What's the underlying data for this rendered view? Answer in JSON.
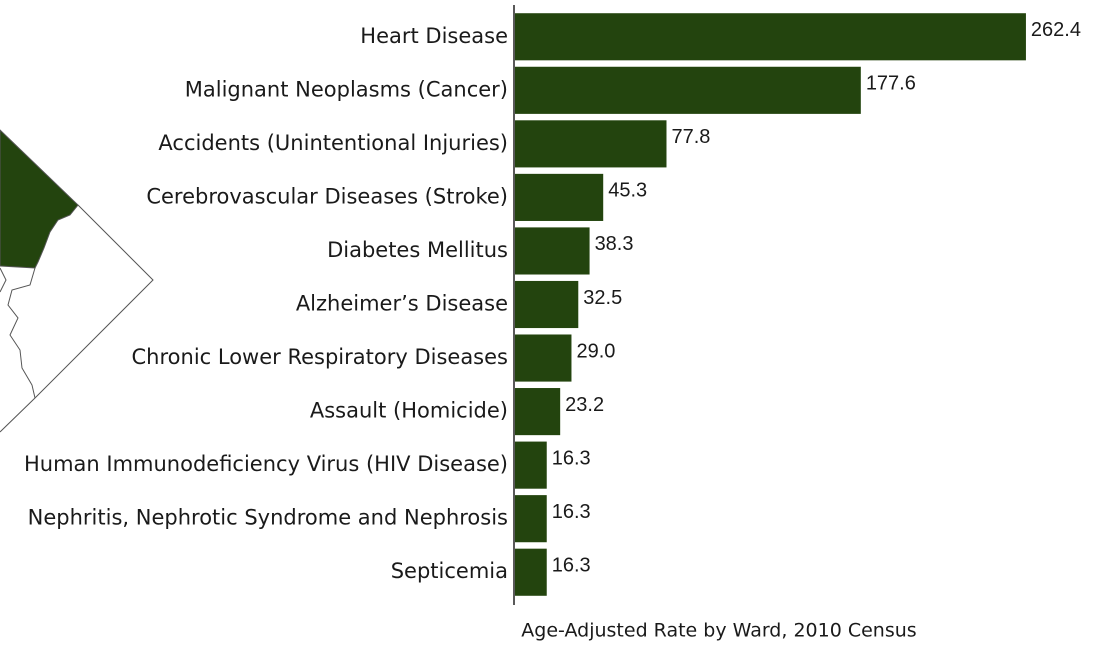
{
  "chart_data": {
    "type": "bar",
    "orientation": "horizontal",
    "categories": [
      "Heart Disease",
      "Malignant Neoplasms (Cancer)",
      "Accidents (Unintentional Injuries)",
      "Cerebrovascular Diseases (Stroke)",
      "Diabetes Mellitus",
      "Alzheimer’s Disease",
      "Chronic Lower Respiratory Diseases",
      "Assault (Homicide)",
      "Human Immunodeficiency Virus (HIV Disease)",
      "Nephritis, Nephrotic Syndrome and Nephrosis",
      "Septicemia"
    ],
    "values": [
      262.4,
      177.6,
      77.8,
      45.3,
      38.3,
      32.5,
      29.0,
      23.2,
      16.3,
      16.3,
      16.3
    ],
    "value_labels": [
      "262.4",
      "177.6",
      "77.8",
      "45.3",
      "38.3",
      "32.5",
      "29.0",
      "23.2",
      "16.3",
      "16.3",
      "16.3"
    ],
    "color": "#23440e",
    "xlim": [
      0,
      265
    ],
    "xlabel": "Age-Adjusted Rate by Ward, 2010 Census"
  }
}
